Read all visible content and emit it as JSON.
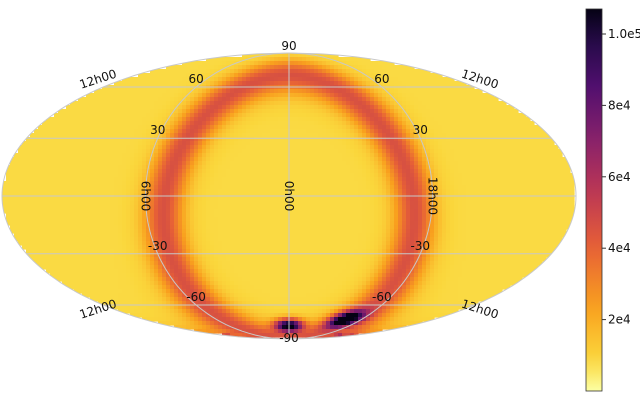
{
  "chart_data": {
    "type": "heatmap",
    "projection": "mollweide",
    "grid": true,
    "legend_position": "right",
    "meridian_labels": [
      "6h00",
      "0h00",
      "18h00"
    ],
    "edge_labels": {
      "upper_left": "12h00",
      "upper_right": "12h00",
      "lower_left": "12h00",
      "lower_right": "12h00"
    },
    "parallel_labels": [
      {
        "lat": 90,
        "text": "90"
      },
      {
        "lat": 60,
        "text": "60"
      },
      {
        "lat": 30,
        "text": "30"
      },
      {
        "lat": -30,
        "text": "-30"
      },
      {
        "lat": -60,
        "text": "-60"
      },
      {
        "lat": -90,
        "text": "-90"
      }
    ],
    "colorbar": {
      "colormap": "inferno_r",
      "vmin": 0,
      "vmax": 107000,
      "ticks": [
        {
          "value": 20000,
          "label": "2e4"
        },
        {
          "value": 40000,
          "label": "4e4"
        },
        {
          "value": 60000,
          "label": "6e4"
        },
        {
          "value": 80000,
          "label": "8e4"
        },
        {
          "value": 100000,
          "label": "1.0e5"
        }
      ]
    },
    "features": [
      {
        "kind": "background",
        "value": 8000
      },
      {
        "kind": "ring",
        "pole_lon": 0,
        "pole_lat": -10,
        "radius_deg": 78,
        "width_deg": 12,
        "value": 38000
      },
      {
        "kind": "ring_segment",
        "pole_lon": 0,
        "pole_lat": -10,
        "radius_deg": 80,
        "width_deg": 6,
        "lon_from": -210,
        "lon_to": -120,
        "value": 88000
      },
      {
        "kind": "blob",
        "lon": -70,
        "lat": -70,
        "size_deg": 6,
        "value": 95000
      },
      {
        "kind": "blob",
        "lon": 0,
        "lat": -75,
        "size_deg": 5,
        "value": 100000
      }
    ]
  },
  "colors": {
    "outline": "#c8c8c8",
    "background": "#fbd13c"
  }
}
